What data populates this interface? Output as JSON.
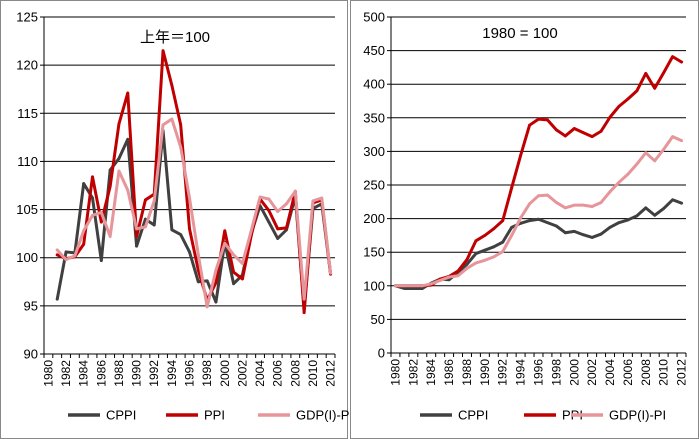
{
  "colors": {
    "CPPI": "#404040",
    "PPI": "#c00000",
    "GDP(I)-PI": "#e6959a",
    "frame": "#888888",
    "grid": "#000000"
  },
  "chart_data": [
    {
      "type": "line",
      "title": "上年＝100",
      "ylim": [
        90,
        125
      ],
      "yticks": [
        90,
        95,
        100,
        105,
        110,
        115,
        120,
        125
      ],
      "ytick_labels": [
        "90",
        "95",
        "100",
        "105",
        "110",
        "115",
        "120",
        "125"
      ],
      "x": [
        1980,
        1981,
        1982,
        1983,
        1984,
        1985,
        1986,
        1987,
        1988,
        1989,
        1990,
        1991,
        1992,
        1993,
        1994,
        1995,
        1996,
        1997,
        1998,
        1999,
        2000,
        2001,
        2002,
        2003,
        2004,
        2005,
        2006,
        2007,
        2008,
        2009,
        2010,
        2011,
        2012
      ],
      "xtick_labels": [
        "1980",
        "1982",
        "1984",
        "1986",
        "1988",
        "1990",
        "1992",
        "1994",
        "1996",
        "1998",
        "2000",
        "2002",
        "2004",
        "2006",
        "2008",
        "2010",
        "2012"
      ],
      "grid": "horizontal",
      "legend": "bottom",
      "series": [
        {
          "name": "CPPI",
          "color": "#404040",
          "values": [
            null,
            95.7,
            100.6,
            100.5,
            107.7,
            106.2,
            99.7,
            109.1,
            110.3,
            112.3,
            101.2,
            104.0,
            103.4,
            113.2,
            102.9,
            102.4,
            100.6,
            97.5,
            97.6,
            95.4,
            101.6,
            97.3,
            98.2,
            102.5,
            105.4,
            103.7,
            102.0,
            102.9,
            106.4,
            94.7,
            105.1,
            105.6,
            98.3
          ]
        },
        {
          "name": "PPI",
          "color": "#c00000",
          "values": [
            null,
            100.3,
            99.9,
            100.1,
            101.4,
            108.4,
            103.7,
            107.4,
            113.9,
            117.1,
            102.2,
            106.0,
            106.6,
            121.5,
            117.9,
            113.8,
            103.0,
            98.7,
            95.6,
            97.4,
            102.8,
            98.5,
            97.8,
            102.3,
            106.1,
            104.9,
            103.0,
            103.1,
            106.9,
            94.3,
            105.7,
            106.0,
            98.3
          ]
        },
        {
          "name": "GDP(I)-PI",
          "color": "#e6959a",
          "values": [
            null,
            100.8,
            99.8,
            100.2,
            102.8,
            104.4,
            104.7,
            102.2,
            109.0,
            107.0,
            103.0,
            103.2,
            105.9,
            113.8,
            114.4,
            111.5,
            106.2,
            100.3,
            94.9,
            98.7,
            101.5,
            100.3,
            99.4,
            102.8,
            106.3,
            106.1,
            104.8,
            105.6,
            106.9,
            95.7,
            105.9,
            106.2,
            98.4
          ]
        }
      ]
    },
    {
      "type": "line",
      "title": "1980 = 100",
      "ylim": [
        0,
        500
      ],
      "yticks": [
        0,
        50,
        100,
        150,
        200,
        250,
        300,
        350,
        400,
        450,
        500
      ],
      "ytick_labels": [
        "0",
        "50",
        "100",
        "150",
        "200",
        "250",
        "300",
        "350",
        "400",
        "450",
        "500"
      ],
      "x": [
        1980,
        1981,
        1982,
        1983,
        1984,
        1985,
        1986,
        1987,
        1988,
        1989,
        1990,
        1991,
        1992,
        1993,
        1994,
        1995,
        1996,
        1997,
        1998,
        1999,
        2000,
        2001,
        2002,
        2003,
        2004,
        2005,
        2006,
        2007,
        2008,
        2009,
        2010,
        2011,
        2012
      ],
      "xtick_labels": [
        "1980",
        "1982",
        "1984",
        "1986",
        "1988",
        "1990",
        "1992",
        "1994",
        "1996",
        "1998",
        "2000",
        "2002",
        "2004",
        "2006",
        "2008",
        "2010",
        "2012"
      ],
      "grid": "horizontal",
      "legend": "bottom",
      "series": [
        {
          "name": "CPPI",
          "color": "#404040",
          "values": [
            100,
            96,
            96,
            96,
            104,
            110,
            109,
            120,
            132,
            148,
            153,
            158,
            165,
            187,
            193,
            197,
            199,
            194,
            189,
            179,
            181,
            176,
            172,
            177,
            187,
            194,
            198,
            204,
            216,
            205,
            215,
            228,
            223
          ]
        },
        {
          "name": "PPI",
          "color": "#c00000",
          "values": [
            100,
            100,
            100,
            100,
            101,
            110,
            114,
            122,
            139,
            167,
            175,
            185,
            197,
            246,
            294,
            339,
            348,
            347,
            332,
            323,
            334,
            328,
            322,
            330,
            351,
            367,
            378,
            390,
            416,
            394,
            417,
            441,
            433
          ]
        },
        {
          "name": "GDP(I)-PI",
          "color": "#e6959a",
          "values": [
            100,
            100,
            100,
            100,
            103,
            108,
            113,
            115,
            126,
            134,
            138,
            143,
            151,
            175,
            201,
            222,
            234,
            235,
            224,
            216,
            220,
            220,
            218,
            224,
            240,
            254,
            266,
            281,
            298,
            286,
            303,
            322,
            316
          ]
        }
      ]
    }
  ]
}
